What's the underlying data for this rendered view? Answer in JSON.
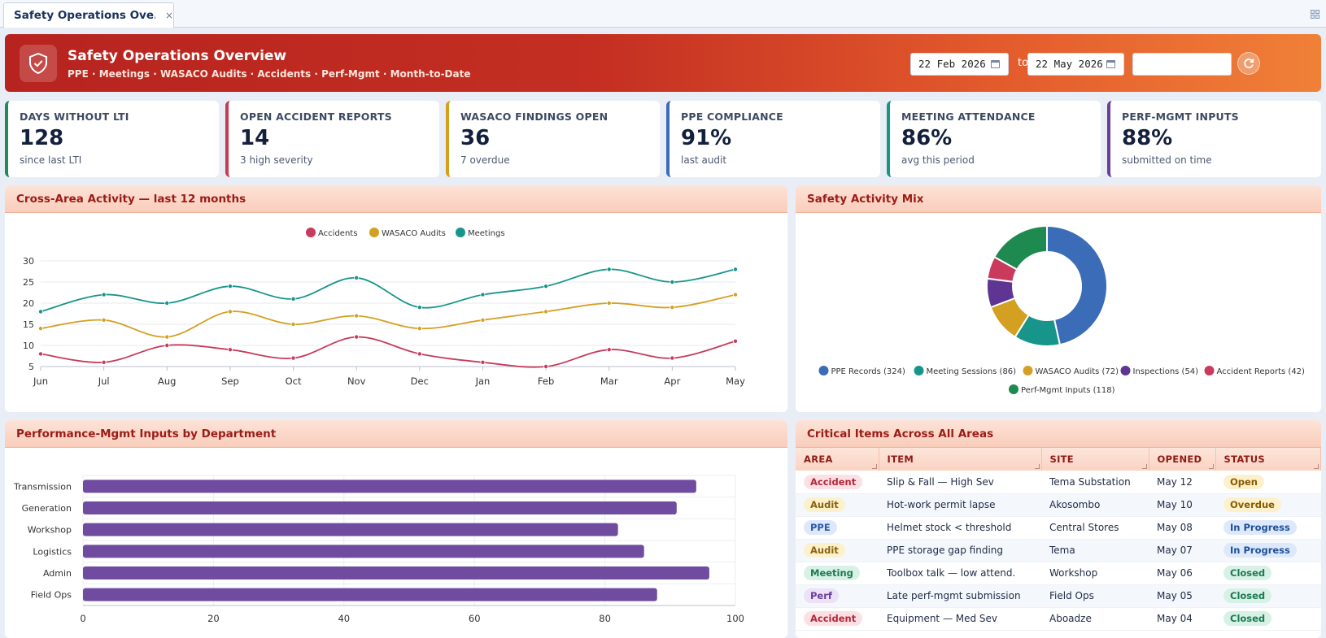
{
  "tab": {
    "label": "Safety Operations Ove...",
    "close": "×"
  },
  "banner": {
    "title": "Safety Operations Overview",
    "subtitle": "PPE · Meetings · WASACO Audits · Accidents · Perf-Mgmt · Month-to-Date",
    "date_from": "22 Feb 2026",
    "date_to": "22 May 2026",
    "to_label": "to",
    "search_value": "",
    "refresh_icon": "refresh-icon"
  },
  "kpis": [
    {
      "label": "DAYS WITHOUT LTI",
      "value": "128",
      "sub": "since last LTI",
      "color": "#1f8a5a"
    },
    {
      "label": "OPEN ACCIDENT REPORTS",
      "value": "14",
      "sub": "3 high severity",
      "color": "#c93a55"
    },
    {
      "label": "WASACO FINDINGS OPEN",
      "value": "36",
      "sub": "7 overdue",
      "color": "#d4a01c"
    },
    {
      "label": "PPE COMPLIANCE",
      "value": "91%",
      "sub": "last audit",
      "color": "#3b6cb8"
    },
    {
      "label": "MEETING ATTENDANCE",
      "value": "86%",
      "sub": "avg this period",
      "color": "#17958a"
    },
    {
      "label": "PERF-MGMT INPUTS",
      "value": "88%",
      "sub": "submitted on time",
      "color": "#6a3d9a"
    }
  ],
  "panels": {
    "line": "Cross-Area Activity — last 12 months",
    "donut": "Safety Activity Mix",
    "bars": "Performance-Mgmt Inputs by Department",
    "table": "Critical Items Across All Areas"
  },
  "chart_data": [
    {
      "type": "line",
      "categories": [
        "Jun",
        "Jul",
        "Aug",
        "Sep",
        "Oct",
        "Nov",
        "Dec",
        "Jan",
        "Feb",
        "Mar",
        "Apr",
        "May"
      ],
      "ylim": [
        5,
        30
      ],
      "yticks": [
        5,
        10,
        15,
        20,
        25,
        30
      ],
      "grid": true,
      "legend": "top-center",
      "series": [
        {
          "name": "Accidents",
          "color": "#c93a5c",
          "values": [
            8,
            6,
            10,
            9,
            7,
            12,
            8,
            6,
            5,
            9,
            7,
            11
          ]
        },
        {
          "name": "WASACO Audits",
          "color": "#d4a022",
          "values": [
            14,
            16,
            12,
            18,
            15,
            17,
            14,
            16,
            18,
            20,
            19,
            22
          ]
        },
        {
          "name": "Meetings",
          "color": "#17958a",
          "values": [
            18,
            22,
            20,
            24,
            21,
            26,
            19,
            22,
            24,
            28,
            25,
            28
          ]
        }
      ]
    },
    {
      "type": "pie",
      "legend": "bottom",
      "slices": [
        {
          "label": "PPE Records (324)",
          "value": 324,
          "color": "#3b6cb8"
        },
        {
          "label": "Meeting Sessions (86)",
          "value": 86,
          "color": "#17958a"
        },
        {
          "label": "WASACO Audits (72)",
          "value": 72,
          "color": "#d4a022"
        },
        {
          "label": "Inspections (54)",
          "value": 54,
          "color": "#5e3593"
        },
        {
          "label": "Accident Reports (42)",
          "value": 42,
          "color": "#c93a5c"
        },
        {
          "label": "Perf-Mgmt Inputs (118)",
          "value": 118,
          "color": "#1f8a4f"
        }
      ]
    },
    {
      "type": "bar",
      "orientation": "horizontal",
      "categories": [
        "Transmission",
        "Generation",
        "Workshop",
        "Logistics",
        "Admin",
        "Field Ops"
      ],
      "values": [
        94,
        91,
        82,
        86,
        96,
        88
      ],
      "xlim": [
        0,
        100
      ],
      "xticks": [
        0,
        20,
        40,
        60,
        80,
        100
      ],
      "color": "#6f4c9f"
    }
  ],
  "table": {
    "columns": [
      "AREA",
      "ITEM",
      "SITE",
      "OPENED",
      "STATUS"
    ],
    "rows": [
      {
        "area": "Accident",
        "item": "Slip & Fall — High Sev",
        "site": "Tema Substation",
        "opened": "May 12",
        "status": "Open"
      },
      {
        "area": "Audit",
        "item": "Hot-work permit lapse",
        "site": "Akosombo",
        "opened": "May 10",
        "status": "Overdue"
      },
      {
        "area": "PPE",
        "item": "Helmet stock < threshold",
        "site": "Central Stores",
        "opened": "May 08",
        "status": "In Progress"
      },
      {
        "area": "Audit",
        "item": "PPE storage gap finding",
        "site": "Tema",
        "opened": "May 07",
        "status": "In Progress"
      },
      {
        "area": "Meeting",
        "item": "Toolbox talk — low attend.",
        "site": "Workshop",
        "opened": "May 06",
        "status": "Closed"
      },
      {
        "area": "Perf",
        "item": "Late perf-mgmt submission",
        "site": "Field Ops",
        "opened": "May 05",
        "status": "Closed"
      },
      {
        "area": "Accident",
        "item": "Equipment — Med Sev",
        "site": "Aboadze",
        "opened": "May 04",
        "status": "Closed"
      }
    ],
    "area_colors": {
      "Accident": {
        "bg": "#fde0e3",
        "fg": "#b3263c"
      },
      "Audit": {
        "bg": "#fdf1cc",
        "fg": "#8a6410"
      },
      "PPE": {
        "bg": "#dde9fa",
        "fg": "#2b5aa6"
      },
      "Meeting": {
        "bg": "#d8f1e6",
        "fg": "#1c7a50"
      },
      "Perf": {
        "bg": "#ece1f7",
        "fg": "#6a3d9a"
      }
    },
    "status_colors": {
      "Open": {
        "bg": "#fdf1cc",
        "fg": "#8a5a00"
      },
      "Overdue": {
        "bg": "#fdf1cc",
        "fg": "#8a5a00"
      },
      "In Progress": {
        "bg": "#dde9fa",
        "fg": "#1e4f9a"
      },
      "Closed": {
        "bg": "#d8f1e6",
        "fg": "#1c7a50"
      }
    }
  }
}
